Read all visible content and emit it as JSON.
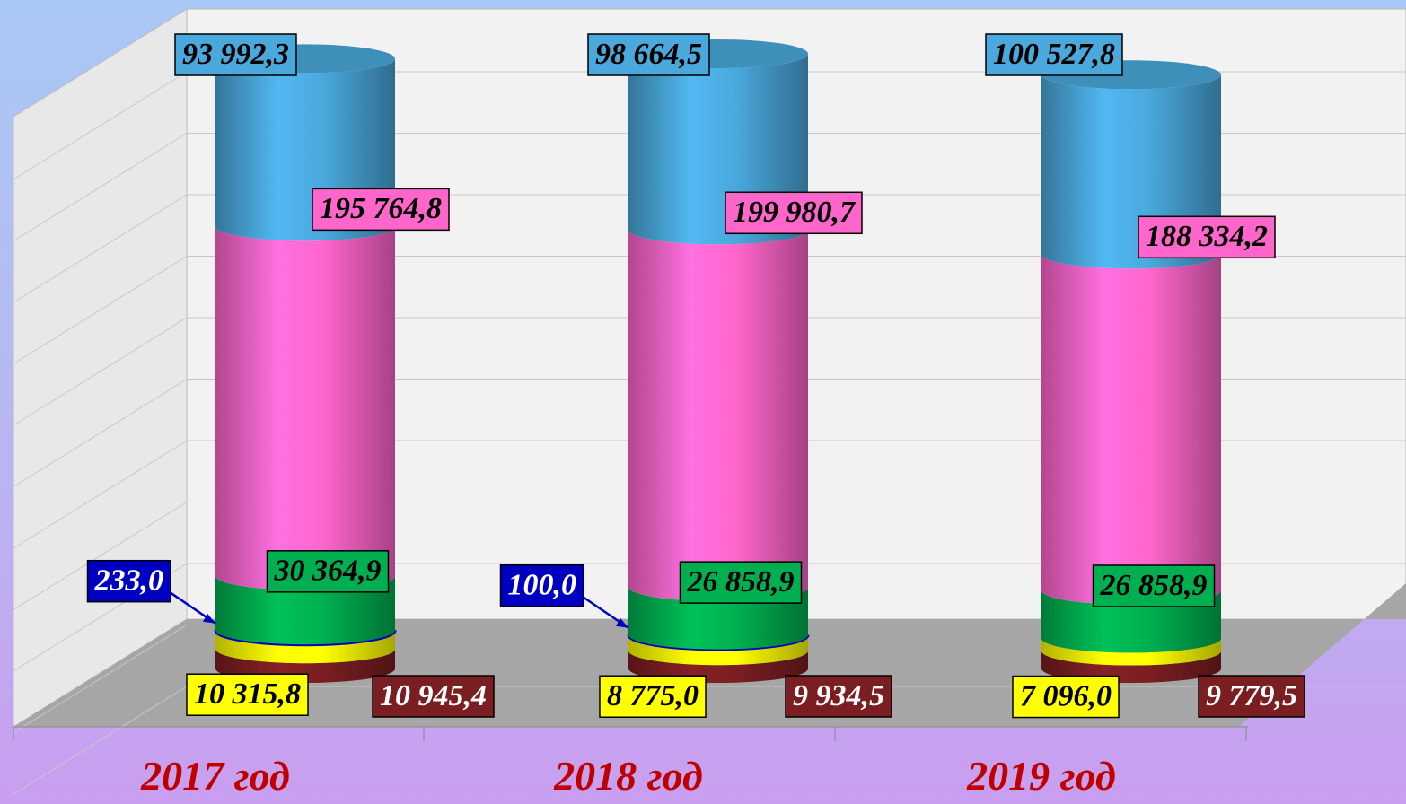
{
  "chart_data": {
    "type": "bar",
    "stacked": true,
    "categories": [
      "2017 год",
      "2018 год",
      "2019 год"
    ],
    "series": [
      {
        "color": "#7b1e22",
        "values": [
          10945.4,
          9934.5,
          9779.5
        ],
        "value_labels": [
          "10 945,4",
          "9 934,5",
          "9 779,5"
        ]
      },
      {
        "color": "#ffff00",
        "values": [
          10315.8,
          8775.0,
          7096.0
        ],
        "value_labels": [
          "10 315,8",
          "8 775,0",
          "7 096,0"
        ]
      },
      {
        "color": "#0000c0",
        "values": [
          233.0,
          100.0,
          null
        ],
        "value_labels": [
          "233,0",
          "100,0",
          null
        ]
      },
      {
        "color": "#00b050",
        "values": [
          30364.9,
          26858.9,
          26858.9
        ],
        "value_labels": [
          "30 364,9",
          "26 858,9",
          "26 858,9"
        ]
      },
      {
        "color": "#ff66cc",
        "values": [
          195764.8,
          199980.7,
          188334.2
        ],
        "value_labels": [
          "195 764,8",
          "199 980,7",
          "188 334,2"
        ]
      },
      {
        "color": "#4aa8dc",
        "values": [
          93992.3,
          98664.5,
          100527.8
        ],
        "value_labels": [
          "93 992,3",
          "98 664,5",
          "100 527,8"
        ]
      }
    ],
    "grid": true
  }
}
